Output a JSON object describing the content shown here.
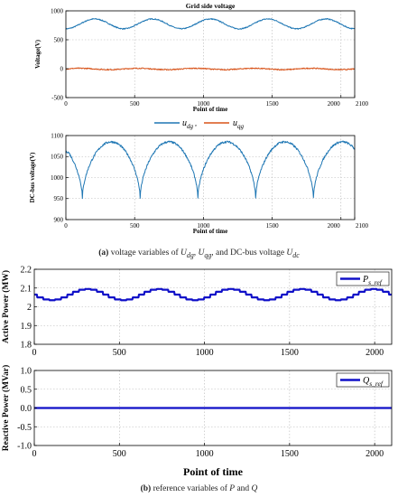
{
  "chart_data": [
    {
      "id": "grid-voltage",
      "type": "line",
      "title": "Grid side voltage",
      "xlabel": "Point of time",
      "ylabel": "Voltage(V)",
      "xlim": [
        0,
        2100
      ],
      "ylim": [
        -500,
        1000
      ],
      "xticks": [
        "0",
        "500",
        "1000",
        "1500",
        "2000",
        "2100"
      ],
      "xtick_values": [
        0,
        500,
        1000,
        1500,
        2000,
        2100
      ],
      "yticks": [
        "-500",
        "0",
        "500",
        "1000"
      ],
      "ytick_values": [
        -500,
        0,
        500,
        1000
      ],
      "grid": true,
      "legend_position": "below",
      "legend_label": "u",
      "series": [
        {
          "name": "u_dg",
          "color": "#1f77b4",
          "model": {
            "kind": "sine",
            "offset": 775,
            "amplitude": 85,
            "period": 420,
            "phase": 105,
            "noise": 9
          }
        },
        {
          "name": "u_qg",
          "color": "#d95319",
          "model": {
            "kind": "sine",
            "offset": -5,
            "amplitude": 12,
            "period": 420,
            "phase": 0,
            "noise": 9
          }
        }
      ]
    },
    {
      "id": "dc-bus-voltage",
      "type": "line",
      "title": "",
      "xlabel": "Point of time",
      "ylabel": "DC-bus voltage(V)",
      "xlim": [
        0,
        2100
      ],
      "ylim": [
        900,
        1100
      ],
      "xticks": [
        "0",
        "500",
        "1000",
        "1500",
        "2000",
        "2100"
      ],
      "xtick_values": [
        0,
        500,
        1000,
        1500,
        2000,
        2100
      ],
      "yticks": [
        "900",
        "950",
        "1000",
        "1050",
        "1100"
      ],
      "ytick_values": [
        900,
        950,
        1000,
        1050,
        1100
      ],
      "grid": true,
      "series": [
        {
          "name": "",
          "color": "#1f77b4",
          "model": {
            "kind": "cusp",
            "low": 950,
            "high": 1085,
            "period": 420,
            "phase": 120,
            "start": 1060,
            "noise": 2.5
          }
        }
      ]
    },
    {
      "id": "active-power",
      "type": "line",
      "title": "",
      "xlabel": "",
      "ylabel": "Active Power (MW)",
      "xlim": [
        0,
        2100
      ],
      "ylim": [
        1.8,
        2.2
      ],
      "xticks": [
        "0",
        "500",
        "1000",
        "1500",
        "2000"
      ],
      "xtick_values": [
        0,
        500,
        1000,
        1500,
        2000
      ],
      "yticks": [
        "1.8",
        "1.9",
        "2",
        "2.1",
        "2.2"
      ],
      "ytick_values": [
        1.8,
        1.9,
        2.0,
        2.1,
        2.2
      ],
      "grid": true,
      "legend_position": "top-right",
      "series": [
        {
          "name": "P",
          "subscript": "s_ref",
          "color": "#1010c8",
          "model": {
            "kind": "sine",
            "offset": 2.065,
            "amplitude": 0.03,
            "period": 420,
            "phase": 210,
            "noise": 0,
            "step": 35
          }
        }
      ]
    },
    {
      "id": "reactive-power",
      "type": "line",
      "title": "",
      "xlabel": "Point of time",
      "ylabel": "Reactive Power (MVar)",
      "xlim": [
        0,
        2100
      ],
      "ylim": [
        -1.0,
        1.0
      ],
      "xticks": [
        "0",
        "500",
        "1000",
        "1500",
        "2000"
      ],
      "xtick_values": [
        0,
        500,
        1000,
        1500,
        2000
      ],
      "yticks": [
        "-1.0",
        "-0.5",
        "0.0",
        "0.5",
        "1.0"
      ],
      "ytick_values": [
        -1.0,
        -0.5,
        0.0,
        0.5,
        1.0
      ],
      "grid": true,
      "legend_position": "top-right",
      "series": [
        {
          "name": "Q",
          "subscript": "s_ref",
          "color": "#1010c8",
          "model": {
            "kind": "constant",
            "value": 0.0
          }
        }
      ]
    }
  ],
  "captions": {
    "a": {
      "label": "(a)",
      "pre": " voltage variables of ",
      "u1": "U",
      "s1": "dg",
      "mid1": ", ",
      "u2": "U",
      "s2": "qg",
      "mid2": ", and DC-bus voltage ",
      "u3": "U",
      "s3": "dc"
    },
    "b": {
      "label": "(b)",
      "pre": " reference variables of ",
      "v1": "P",
      "mid": " and ",
      "v2": "Q"
    }
  }
}
